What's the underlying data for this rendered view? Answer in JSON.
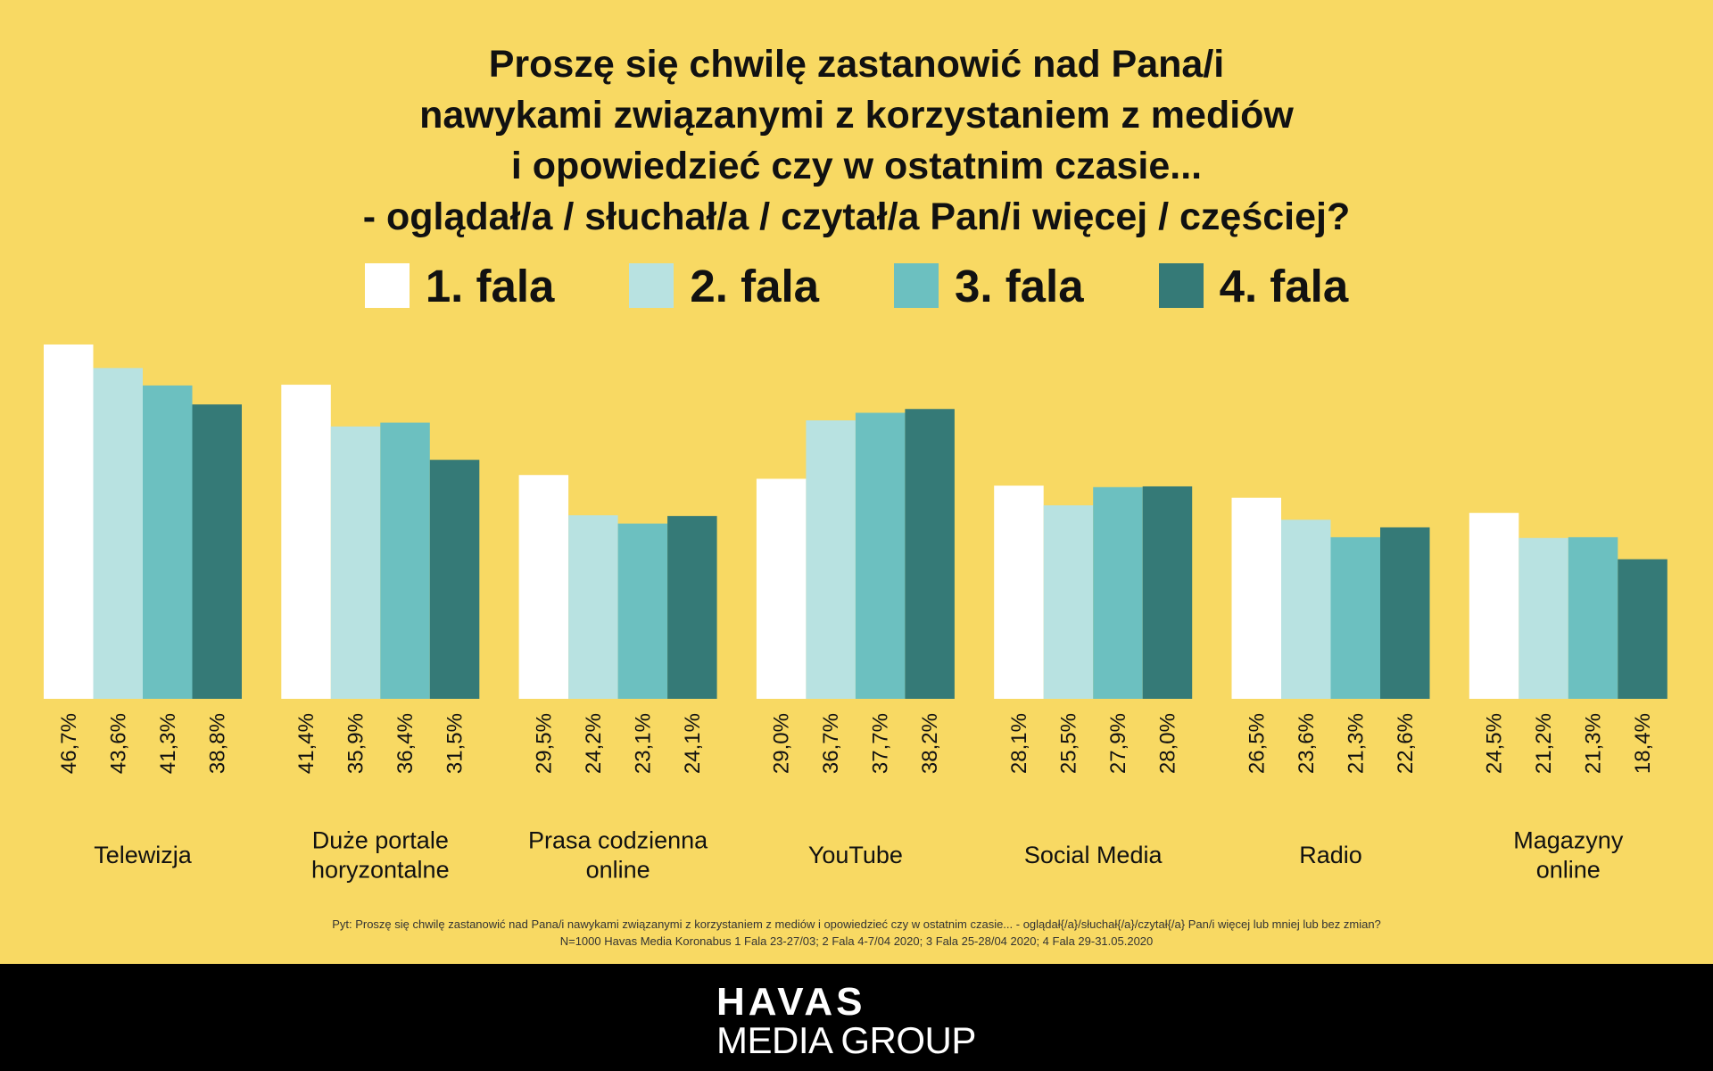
{
  "title_lines": [
    "Proszę się chwilę zastanowić nad Pana/i",
    "nawykami związanymi z korzystaniem z mediów",
    "i opowiedzieć czy w ostatnim czasie...",
    "- oglądał/a / słuchał/a / czytał/a Pan/i więcej / częściej?"
  ],
  "colors": {
    "background": "#F8D963",
    "fala1": "#FFFFFF",
    "fala2": "#B8E2E1",
    "fala3": "#6CC0C0",
    "fala4": "#357A77",
    "footer": "#000000"
  },
  "chart_data": {
    "type": "bar",
    "categories": [
      "Telewizja",
      "Duże portale horyzontalne",
      "Prasa codzienna online",
      "YouTube",
      "Social Media",
      "Radio",
      "Magazyny online"
    ],
    "category_label_lines": [
      [
        "Telewizja"
      ],
      [
        "Duże portale",
        "horyzontalne"
      ],
      [
        "Prasa codzienna",
        "online"
      ],
      [
        "YouTube"
      ],
      [
        "Social Media"
      ],
      [
        "Radio"
      ],
      [
        "Magazyny",
        "online"
      ]
    ],
    "series": [
      {
        "name": "1. fala",
        "color": "#FFFFFF",
        "values": [
          46.7,
          41.4,
          29.5,
          29.0,
          28.1,
          26.5,
          24.5
        ],
        "labels": [
          "46,7%",
          "41,4%",
          "29,5%",
          "29,0%",
          "28,1%",
          "26,5%",
          "24,5%"
        ]
      },
      {
        "name": "2. fala",
        "color": "#B8E2E1",
        "values": [
          43.6,
          35.9,
          24.2,
          36.7,
          25.5,
          23.6,
          21.2
        ],
        "labels": [
          "43,6%",
          "35,9%",
          "24,2%",
          "36,7%",
          "25,5%",
          "23,6%",
          "21,2%"
        ]
      },
      {
        "name": "3. fala",
        "color": "#6CC0C0",
        "values": [
          41.3,
          36.4,
          23.1,
          37.7,
          27.9,
          21.3,
          21.3
        ],
        "labels": [
          "41,3%",
          "36,4%",
          "23,1%",
          "37,7%",
          "27,9%",
          "21,3%",
          "21,3%"
        ]
      },
      {
        "name": "4. fala",
        "color": "#357A77",
        "values": [
          38.8,
          31.5,
          24.1,
          38.2,
          28.0,
          22.6,
          18.4
        ],
        "labels": [
          "38,8%",
          "31,5%",
          "24,1%",
          "38,2%",
          "28,0%",
          "22,6%",
          "18,4%"
        ]
      }
    ],
    "ylim": [
      0,
      46.7
    ],
    "legend_position": "top",
    "grid": false
  },
  "footnote": [
    "Pyt: Proszę się chwilę zastanowić nad Pana/i nawykami związanymi z korzystaniem z mediów i opowiedzieć czy w ostatnim czasie... - oglądał{/a}/słuchał{/a}/czytał{/a} Pan/i więcej lub mniej lub bez zmian?",
    "N=1000 Havas Media Koronabus 1 Fala 23-27/03; 2 Fala 4-7/04 2020; 3 Fala 25-28/04 2020; 4 Fala 29-31.05.2020"
  ],
  "logo": {
    "top": "HAVAS",
    "bottom": "MEDIA GROUP"
  }
}
